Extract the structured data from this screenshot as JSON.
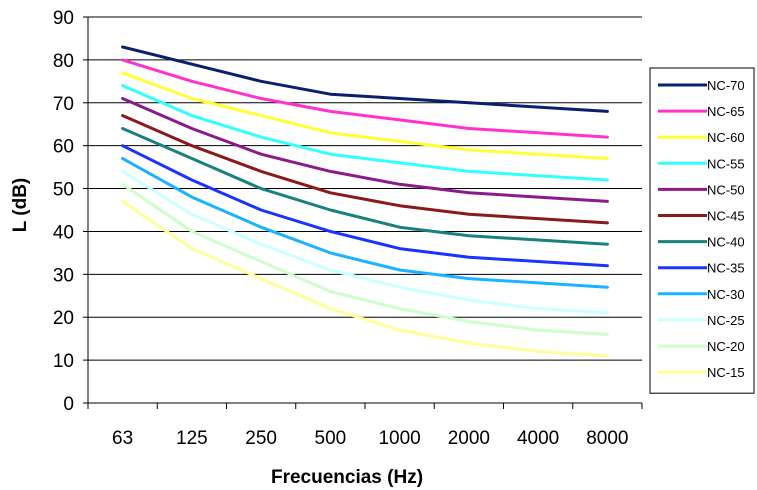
{
  "chart_data": {
    "type": "line",
    "title": "",
    "xlabel": "Frecuencias (Hz)",
    "ylabel": "L (dB)",
    "categories": [
      "63",
      "125",
      "250",
      "500",
      "1000",
      "2000",
      "4000",
      "8000"
    ],
    "ylim": [
      0,
      90
    ],
    "yticks": [
      0,
      10,
      20,
      30,
      40,
      50,
      60,
      70,
      80,
      90
    ],
    "grid": "horizontal",
    "legend_position": "right",
    "series": [
      {
        "name": "NC-70",
        "color": "#0b1f6e",
        "values": [
          83,
          79,
          75,
          72,
          71,
          70,
          69,
          68
        ]
      },
      {
        "name": "NC-65",
        "color": "#ff33cc",
        "values": [
          80,
          75,
          71,
          68,
          66,
          64,
          63,
          62
        ]
      },
      {
        "name": "NC-60",
        "color": "#ffff33",
        "values": [
          77,
          71,
          67,
          63,
          61,
          59,
          58,
          57
        ]
      },
      {
        "name": "NC-55",
        "color": "#33ffff",
        "values": [
          74,
          67,
          62,
          58,
          56,
          54,
          53,
          52
        ]
      },
      {
        "name": "NC-50",
        "color": "#8b1a8b",
        "values": [
          71,
          64,
          58,
          54,
          51,
          49,
          48,
          47
        ]
      },
      {
        "name": "NC-45",
        "color": "#8b1a1a",
        "values": [
          67,
          60,
          54,
          49,
          46,
          44,
          43,
          42
        ]
      },
      {
        "name": "NC-40",
        "color": "#1a8080",
        "values": [
          64,
          57,
          50,
          45,
          41,
          39,
          38,
          37
        ]
      },
      {
        "name": "NC-35",
        "color": "#1a33ff",
        "values": [
          60,
          52,
          45,
          40,
          36,
          34,
          33,
          32
        ]
      },
      {
        "name": "NC-30",
        "color": "#1ab3ff",
        "values": [
          57,
          48,
          41,
          35,
          31,
          29,
          28,
          27
        ]
      },
      {
        "name": "NC-25",
        "color": "#ccffff",
        "values": [
          54,
          44,
          37,
          31,
          27,
          24,
          22,
          21
        ]
      },
      {
        "name": "NC-20",
        "color": "#ccffcc",
        "values": [
          51,
          40,
          33,
          26,
          22,
          19,
          17,
          16
        ]
      },
      {
        "name": "NC-15",
        "color": "#ffff99",
        "values": [
          47,
          36,
          29,
          22,
          17,
          14,
          12,
          11
        ]
      }
    ]
  }
}
